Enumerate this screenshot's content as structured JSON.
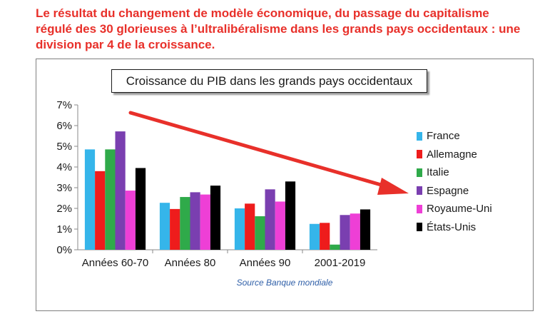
{
  "headline": "Le résultat du changement de modèle économique, du passage du capitalisme régulé des 30 glorieuses à l’ultralibéralisme dans les grands pays occidentaux : une division par 4 de la croissance.",
  "source": "Source Banque mondiale",
  "chart_data": {
    "type": "bar",
    "title": "Croissance du PIB dans les grands pays occidentaux",
    "categories": [
      "Années 60-70",
      "Années 80",
      "Années 90",
      "2001-2019"
    ],
    "ylim": [
      0,
      7
    ],
    "yticks": [
      "0%",
      "1%",
      "2%",
      "3%",
      "4%",
      "5%",
      "6%",
      "7%"
    ],
    "grid": false,
    "legend_position": "right",
    "series": [
      {
        "name": "France",
        "color": "#35b5ea",
        "values": [
          4.85,
          2.27,
          2.0,
          1.25
        ]
      },
      {
        "name": "Allemagne",
        "color": "#ee1c1c",
        "values": [
          3.8,
          1.97,
          2.23,
          1.3
        ]
      },
      {
        "name": "Italie",
        "color": "#2faa4a",
        "values": [
          4.85,
          2.55,
          1.62,
          0.25
        ]
      },
      {
        "name": "Espagne",
        "color": "#7a3fb0",
        "values": [
          5.72,
          2.78,
          2.92,
          1.68
        ]
      },
      {
        "name": "Royaume-Uni",
        "color": "#ee3fd6",
        "values": [
          2.86,
          2.67,
          2.33,
          1.75
        ]
      },
      {
        "name": "États-Unis",
        "color": "#000000",
        "values": [
          3.95,
          3.1,
          3.3,
          1.95
        ]
      }
    ],
    "annotation": {
      "type": "arrow",
      "color": "#e8302a",
      "direction": "downward trend"
    }
  }
}
